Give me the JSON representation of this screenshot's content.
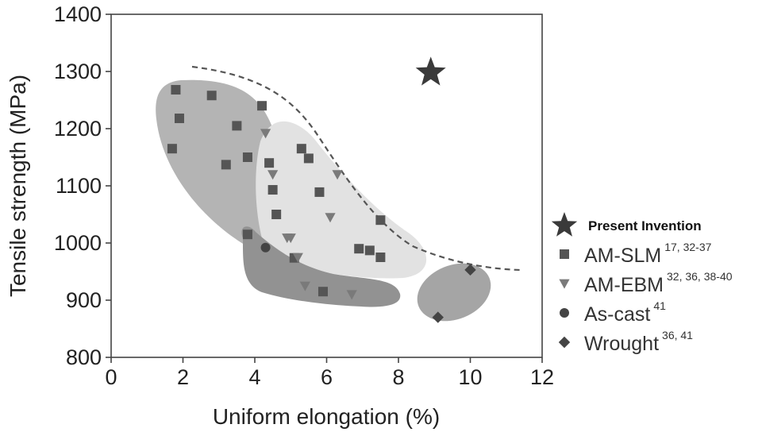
{
  "chart_data": {
    "type": "scatter",
    "xlabel": "Uniform elongation (%)",
    "ylabel": "Tensile strength (MPa)",
    "xlim": [
      0,
      12
    ],
    "ylim": [
      800,
      1400
    ],
    "xticks": [
      "0",
      "2",
      "4",
      "6",
      "8",
      "10",
      "12"
    ],
    "yticks": [
      "800",
      "900",
      "1000",
      "1100",
      "1200",
      "1300",
      "1400"
    ],
    "grid": false,
    "legend_position": "right",
    "series": [
      {
        "name": "Present Invention",
        "marker": "star",
        "color": "#3a3a3a",
        "points": [
          [
            8.9,
            1298
          ]
        ]
      },
      {
        "name": "AM-SLM",
        "refs": "17, 32-37",
        "marker": "square",
        "color": "#555555",
        "points": [
          [
            1.8,
            1268
          ],
          [
            2.8,
            1258
          ],
          [
            1.9,
            1218
          ],
          [
            1.7,
            1165
          ],
          [
            3.5,
            1205
          ],
          [
            3.8,
            1150
          ],
          [
            3.2,
            1137
          ],
          [
            4.2,
            1240
          ],
          [
            4.4,
            1140
          ],
          [
            4.5,
            1093
          ],
          [
            4.6,
            1050
          ],
          [
            5.3,
            1165
          ],
          [
            5.5,
            1148
          ],
          [
            5.8,
            1089
          ],
          [
            3.8,
            1015
          ],
          [
            5.1,
            974
          ],
          [
            6.9,
            990
          ],
          [
            7.2,
            987
          ],
          [
            7.5,
            975
          ],
          [
            7.5,
            1040
          ],
          [
            5.9,
            915
          ]
        ]
      },
      {
        "name": "AM-EBM",
        "refs": "32, 36, 38-40",
        "marker": "triangle-down",
        "color": "#7a7a7a",
        "points": [
          [
            4.3,
            1192
          ],
          [
            4.5,
            1120
          ],
          [
            6.3,
            1120
          ],
          [
            6.1,
            1045
          ],
          [
            4.9,
            1009
          ],
          [
            5.0,
            1009
          ],
          [
            5.2,
            975
          ],
          [
            5.4,
            925
          ],
          [
            6.7,
            910
          ]
        ]
      },
      {
        "name": "As-cast",
        "refs": "41",
        "marker": "circle",
        "color": "#444444",
        "points": [
          [
            4.3,
            992
          ]
        ]
      },
      {
        "name": "Wrought",
        "refs": "36, 41",
        "marker": "diamond",
        "color": "#444444",
        "points": [
          [
            10.0,
            953
          ],
          [
            9.1,
            870
          ]
        ]
      }
    ]
  }
}
